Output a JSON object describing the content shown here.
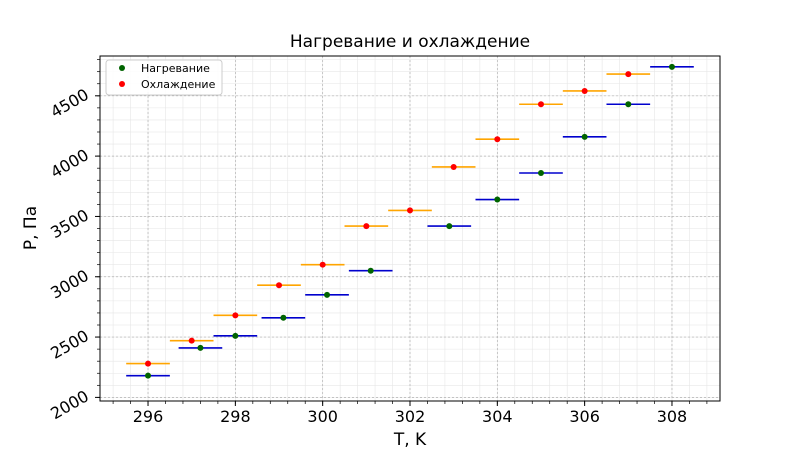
{
  "chart_data": {
    "type": "scatter",
    "title": "Нагревание и охлаждение",
    "xlabel": "T, K",
    "ylabel": "P, Па",
    "xlim": [
      294.9,
      309.1
    ],
    "ylim": [
      1970,
      4830
    ],
    "x_ticks": [
      296,
      298,
      300,
      302,
      304,
      306,
      308
    ],
    "y_ticks": [
      2000,
      2500,
      3000,
      3500,
      4000,
      4500
    ],
    "grid": "major and minor",
    "legend_position": "top-left",
    "x_error": 0.5,
    "series": [
      {
        "name": "Нагревание",
        "marker_color": "#006400",
        "errorbar_color": "#0000cd",
        "points": [
          {
            "x": 296.0,
            "y": 2180
          },
          {
            "x": 297.2,
            "y": 2410
          },
          {
            "x": 298.0,
            "y": 2510
          },
          {
            "x": 299.1,
            "y": 2660
          },
          {
            "x": 300.1,
            "y": 2850
          },
          {
            "x": 301.1,
            "y": 3050
          },
          {
            "x": 302.9,
            "y": 3420
          },
          {
            "x": 304.0,
            "y": 3640
          },
          {
            "x": 305.0,
            "y": 3860
          },
          {
            "x": 306.0,
            "y": 4160
          },
          {
            "x": 307.0,
            "y": 4430
          },
          {
            "x": 308.0,
            "y": 4740
          }
        ]
      },
      {
        "name": "Охлаждение",
        "marker_color": "#ff0000",
        "errorbar_color": "#ffa500",
        "points": [
          {
            "x": 296.0,
            "y": 2280
          },
          {
            "x": 297.0,
            "y": 2470
          },
          {
            "x": 298.0,
            "y": 2680
          },
          {
            "x": 299.0,
            "y": 2930
          },
          {
            "x": 300.0,
            "y": 3100
          },
          {
            "x": 301.0,
            "y": 3420
          },
          {
            "x": 302.0,
            "y": 3550
          },
          {
            "x": 303.0,
            "y": 3910
          },
          {
            "x": 304.0,
            "y": 4140
          },
          {
            "x": 305.0,
            "y": 4430
          },
          {
            "x": 306.0,
            "y": 4540
          },
          {
            "x": 307.0,
            "y": 4680
          }
        ]
      }
    ]
  }
}
